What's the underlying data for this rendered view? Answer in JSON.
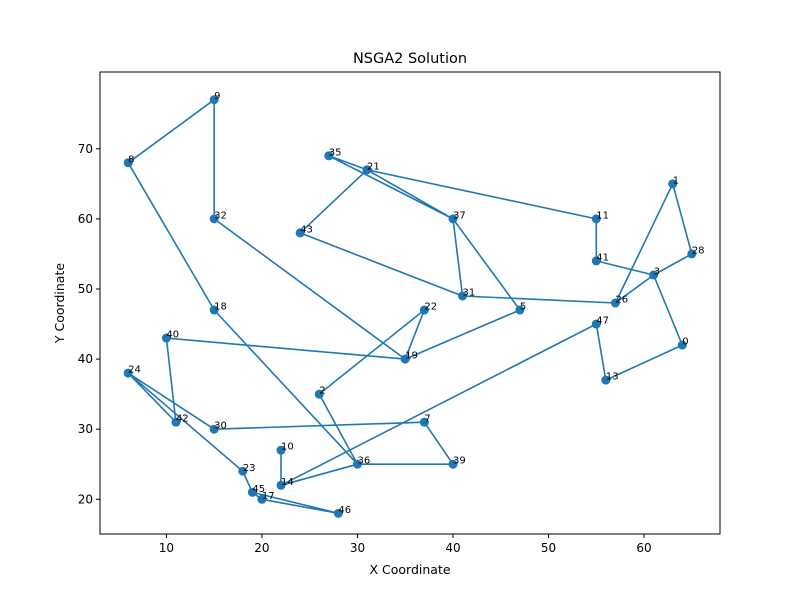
{
  "chart_data": {
    "type": "scatter",
    "title": "NSGA2 Solution",
    "xlabel": "X Coordinate",
    "ylabel": "Y Coordinate",
    "xlim": [
      3.05,
      67.95
    ],
    "ylim": [
      15.05,
      80.95
    ],
    "xticks": [
      10,
      20,
      30,
      40,
      50,
      60
    ],
    "yticks": [
      20,
      30,
      40,
      50,
      60,
      70
    ],
    "grid": false,
    "colors": {
      "series": "#1f77b4"
    },
    "points": [
      {
        "id": "0",
        "x": 64,
        "y": 42
      },
      {
        "id": "1",
        "x": 63,
        "y": 65
      },
      {
        "id": "2",
        "x": 26,
        "y": 35
      },
      {
        "id": "3",
        "x": 61,
        "y": 52
      },
      {
        "id": "5",
        "x": 47,
        "y": 47
      },
      {
        "id": "7",
        "x": 37,
        "y": 31
      },
      {
        "id": "8",
        "x": 6,
        "y": 68
      },
      {
        "id": "9",
        "x": 15,
        "y": 77
      },
      {
        "id": "10",
        "x": 22,
        "y": 27
      },
      {
        "id": "11",
        "x": 55,
        "y": 60
      },
      {
        "id": "13",
        "x": 56,
        "y": 37
      },
      {
        "id": "14",
        "x": 22,
        "y": 22
      },
      {
        "id": "17",
        "x": 20,
        "y": 20
      },
      {
        "id": "18",
        "x": 15,
        "y": 47
      },
      {
        "id": "19",
        "x": 35,
        "y": 40
      },
      {
        "id": "21",
        "x": 31,
        "y": 67
      },
      {
        "id": "22",
        "x": 37,
        "y": 47
      },
      {
        "id": "23",
        "x": 18,
        "y": 24
      },
      {
        "id": "24",
        "x": 6,
        "y": 38
      },
      {
        "id": "26",
        "x": 57,
        "y": 48
      },
      {
        "id": "28",
        "x": 65,
        "y": 55
      },
      {
        "id": "30",
        "x": 15,
        "y": 30
      },
      {
        "id": "31",
        "x": 41,
        "y": 49
      },
      {
        "id": "32",
        "x": 15,
        "y": 60
      },
      {
        "id": "35",
        "x": 27,
        "y": 69
      },
      {
        "id": "36",
        "x": 30,
        "y": 25
      },
      {
        "id": "37",
        "x": 40,
        "y": 60
      },
      {
        "id": "39",
        "x": 40,
        "y": 25
      },
      {
        "id": "40",
        "x": 10,
        "y": 43
      },
      {
        "id": "41",
        "x": 55,
        "y": 54
      },
      {
        "id": "42",
        "x": 11,
        "y": 31
      },
      {
        "id": "43",
        "x": 24,
        "y": 58
      },
      {
        "id": "45",
        "x": 19,
        "y": 21
      },
      {
        "id": "46",
        "x": 28,
        "y": 18
      },
      {
        "id": "47",
        "x": 55,
        "y": 45
      }
    ],
    "route": [
      "8",
      "9",
      "32",
      "19",
      "5",
      "37",
      "21",
      "35",
      "37",
      "31",
      "26",
      "3",
      "28",
      "1",
      "26",
      "31",
      "43",
      "21",
      "11",
      "41",
      "3",
      "0",
      "13",
      "47",
      "14",
      "10",
      "14",
      "36",
      "39",
      "7",
      "30",
      "24",
      "23",
      "45",
      "46",
      "17",
      "45",
      "23",
      "24",
      "42",
      "40",
      "19",
      "22",
      "2",
      "36",
      "18",
      "8"
    ]
  }
}
